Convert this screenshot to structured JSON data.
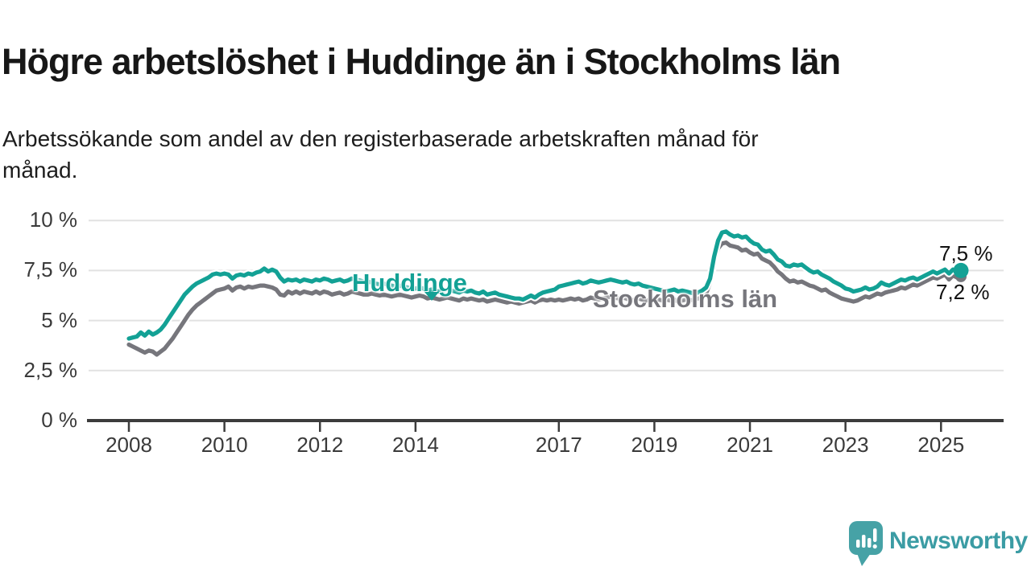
{
  "header": {
    "title": "Högre arbetslöshet i Huddinge än i Stockholms län",
    "subtitle": "Arbetssökande som andel av den registerbaserade arbetskraften månad för månad."
  },
  "chart_data": {
    "type": "line",
    "title": "Högre arbetslöshet i Huddinge än i Stockholms län",
    "subtitle": "Arbetssökande som andel av den registerbaserade arbetskraften månad för månad.",
    "unit": "%",
    "frequency": "monthly",
    "x_start": "2008-01",
    "x_end": "2025-06",
    "ylim": [
      0,
      10
    ],
    "grid": "horizontal",
    "legend": "inline-labels",
    "y_axis": {
      "ticks": [
        {
          "value": 10,
          "label": "10 %"
        },
        {
          "value": 7.5,
          "label": "7,5 %"
        },
        {
          "value": 5,
          "label": "5 %"
        },
        {
          "value": 2.5,
          "label": "2,5 %"
        },
        {
          "value": 0,
          "label": "0 %"
        }
      ]
    },
    "x_axis": {
      "ticks": [
        {
          "year": 2008,
          "label": "2008"
        },
        {
          "year": 2010,
          "label": "2010"
        },
        {
          "year": 2012,
          "label": "2012"
        },
        {
          "year": 2014,
          "label": "2014"
        },
        {
          "year": 2017,
          "label": "2017"
        },
        {
          "year": 2019,
          "label": "2019"
        },
        {
          "year": 2021,
          "label": "2021"
        },
        {
          "year": 2023,
          "label": "2023"
        },
        {
          "year": 2025,
          "label": "2025"
        }
      ]
    },
    "series": [
      {
        "name": "Huddinge",
        "color": "#13a195",
        "end_label": "7,5 %",
        "end_value": 7.5,
        "values": [
          4.1,
          4.15,
          4.2,
          4.4,
          4.25,
          4.45,
          4.3,
          4.4,
          4.55,
          4.8,
          5.1,
          5.4,
          5.7,
          6.0,
          6.3,
          6.5,
          6.7,
          6.85,
          6.95,
          7.05,
          7.15,
          7.3,
          7.35,
          7.3,
          7.35,
          7.3,
          7.1,
          7.25,
          7.3,
          7.25,
          7.35,
          7.3,
          7.4,
          7.45,
          7.6,
          7.45,
          7.55,
          7.45,
          7.15,
          6.95,
          7.05,
          7.0,
          7.05,
          6.95,
          7.05,
          7.0,
          6.95,
          7.05,
          7.0,
          7.1,
          7.05,
          6.95,
          7.0,
          7.05,
          6.95,
          7.0,
          7.1,
          7.05,
          7.0,
          6.95,
          6.95,
          6.9,
          6.85,
          6.8,
          6.85,
          6.8,
          6.75,
          6.7,
          6.75,
          6.7,
          6.65,
          6.6,
          6.6,
          6.65,
          6.6,
          6.5,
          6.55,
          6.5,
          6.45,
          6.5,
          6.55,
          6.5,
          6.45,
          6.4,
          6.5,
          6.45,
          6.5,
          6.4,
          6.35,
          6.45,
          6.3,
          6.35,
          6.4,
          6.3,
          6.25,
          6.2,
          6.15,
          6.1,
          6.1,
          6.05,
          6.15,
          6.25,
          6.15,
          6.3,
          6.4,
          6.45,
          6.5,
          6.55,
          6.7,
          6.75,
          6.8,
          6.85,
          6.9,
          6.95,
          6.85,
          6.9,
          7.0,
          6.95,
          6.9,
          6.95,
          7.0,
          7.05,
          7.0,
          6.95,
          6.9,
          6.95,
          6.85,
          6.8,
          6.85,
          6.75,
          6.7,
          6.65,
          6.6,
          6.55,
          6.5,
          6.45,
          6.5,
          6.55,
          6.45,
          6.5,
          6.45,
          6.4,
          6.35,
          6.4,
          6.5,
          6.65,
          7.1,
          8.2,
          9.0,
          9.4,
          9.45,
          9.3,
          9.2,
          9.25,
          9.15,
          9.2,
          9.0,
          8.85,
          8.8,
          8.55,
          8.45,
          8.5,
          8.3,
          8.05,
          7.95,
          7.75,
          7.7,
          7.8,
          7.75,
          7.8,
          7.65,
          7.5,
          7.4,
          7.45,
          7.3,
          7.2,
          7.1,
          6.95,
          6.85,
          6.75,
          6.6,
          6.55,
          6.45,
          6.5,
          6.55,
          6.65,
          6.55,
          6.6,
          6.7,
          6.9,
          6.8,
          6.75,
          6.85,
          6.95,
          7.05,
          7.0,
          7.1,
          7.15,
          7.05,
          7.15,
          7.25,
          7.35,
          7.45,
          7.35,
          7.45,
          7.55,
          7.35,
          7.55,
          7.45,
          7.5
        ]
      },
      {
        "name": "Stockholms län",
        "color": "#76767c",
        "end_label": "7,2 %",
        "end_value": 7.2,
        "values": [
          3.8,
          3.7,
          3.6,
          3.5,
          3.4,
          3.5,
          3.45,
          3.3,
          3.45,
          3.6,
          3.85,
          4.1,
          4.4,
          4.7,
          5.0,
          5.3,
          5.55,
          5.75,
          5.9,
          6.05,
          6.2,
          6.35,
          6.5,
          6.55,
          6.6,
          6.7,
          6.5,
          6.65,
          6.7,
          6.6,
          6.7,
          6.65,
          6.7,
          6.75,
          6.75,
          6.7,
          6.65,
          6.55,
          6.3,
          6.25,
          6.45,
          6.35,
          6.45,
          6.35,
          6.45,
          6.4,
          6.35,
          6.45,
          6.35,
          6.45,
          6.4,
          6.3,
          6.35,
          6.4,
          6.3,
          6.35,
          6.45,
          6.4,
          6.35,
          6.3,
          6.3,
          6.35,
          6.3,
          6.25,
          6.3,
          6.25,
          6.2,
          6.25,
          6.3,
          6.25,
          6.2,
          6.15,
          6.2,
          6.25,
          6.2,
          6.1,
          6.15,
          6.1,
          6.05,
          6.1,
          6.15,
          6.1,
          6.05,
          6.0,
          6.1,
          6.05,
          6.1,
          6.05,
          6.0,
          6.05,
          5.95,
          6.0,
          6.05,
          6.0,
          5.95,
          5.9,
          5.95,
          5.9,
          5.85,
          5.9,
          5.95,
          6.0,
          5.9,
          6.0,
          6.05,
          6.0,
          6.05,
          6.0,
          6.05,
          6.0,
          6.05,
          6.1,
          6.05,
          6.1,
          6.0,
          6.05,
          6.15,
          6.1,
          6.05,
          6.1,
          6.15,
          6.2,
          6.15,
          6.1,
          6.15,
          6.1,
          6.0,
          6.05,
          6.1,
          6.05,
          6.0,
          6.05,
          6.1,
          6.05,
          6.0,
          6.05,
          6.0,
          6.05,
          5.95,
          6.0,
          6.05,
          6.0,
          6.05,
          6.1,
          6.25,
          6.35,
          6.9,
          8.0,
          8.6,
          8.85,
          8.9,
          8.75,
          8.7,
          8.65,
          8.5,
          8.55,
          8.4,
          8.3,
          8.35,
          8.1,
          8.0,
          7.9,
          7.7,
          7.45,
          7.3,
          7.1,
          6.95,
          7.0,
          6.9,
          6.95,
          6.85,
          6.75,
          6.7,
          6.6,
          6.5,
          6.55,
          6.4,
          6.3,
          6.2,
          6.1,
          6.05,
          6.0,
          5.95,
          6.0,
          6.1,
          6.2,
          6.15,
          6.25,
          6.35,
          6.3,
          6.4,
          6.45,
          6.5,
          6.55,
          6.65,
          6.6,
          6.7,
          6.8,
          6.75,
          6.85,
          6.95,
          7.05,
          7.15,
          7.1,
          7.2,
          7.3,
          7.05,
          7.25,
          7.15,
          7.2
        ]
      }
    ],
    "colors": {
      "huddinge": "#13a195",
      "stockholms_lan": "#76767c",
      "grid": "#e2e2e2",
      "axis": "#3c3c3c",
      "text": "#3a3a3a"
    }
  },
  "branding": {
    "name": "Newsworthy",
    "logo_icon": "speech-bubble-bar-chart-icon",
    "logo_color": "#46a2a6",
    "text_color": "#3b9ca4"
  }
}
